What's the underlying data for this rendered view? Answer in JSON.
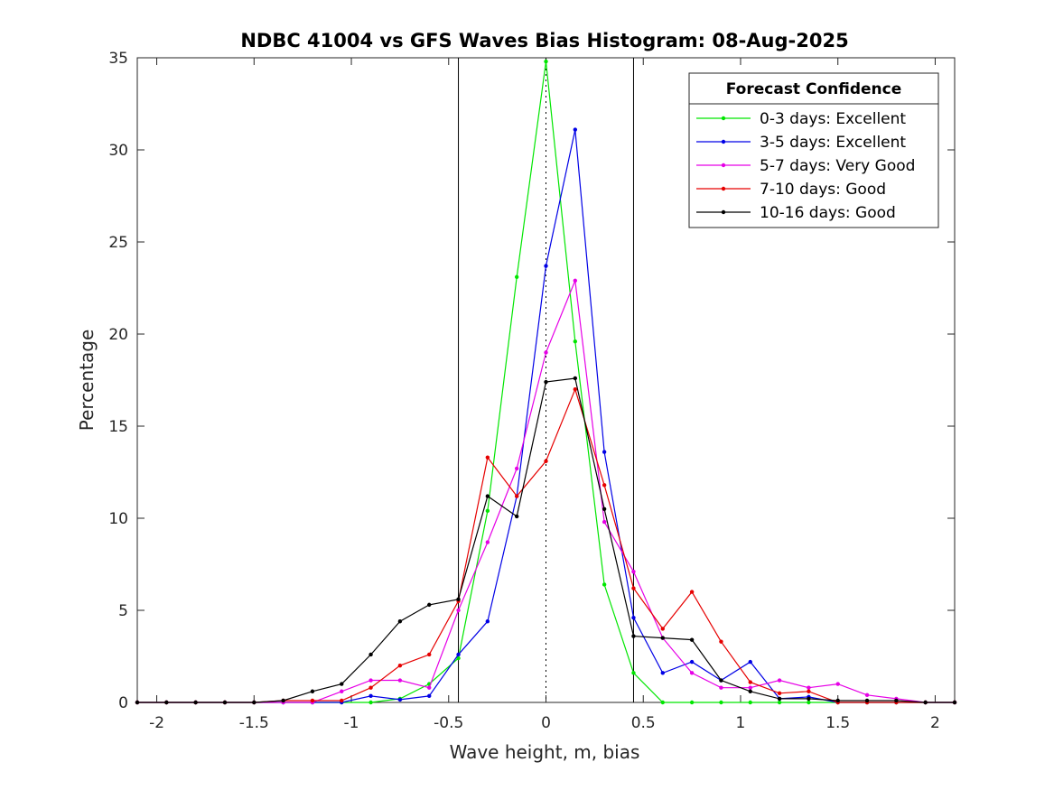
{
  "chart_data": {
    "type": "line",
    "title": "NDBC 41004 vs GFS Waves Bias Histogram: 08-Aug-2025",
    "xlabel": "Wave height, m, bias",
    "ylabel": "Percentage",
    "xlim": [
      -2.1,
      2.1
    ],
    "ylim": [
      0,
      35
    ],
    "xticks": [
      -2,
      -1.5,
      -1,
      -0.5,
      0,
      0.5,
      1,
      1.5,
      2
    ],
    "xtick_labels": [
      "-2",
      "-1.5",
      "-1",
      "-0.5",
      "0",
      "0.5",
      "1",
      "1.5",
      "2"
    ],
    "yticks": [
      0,
      5,
      10,
      15,
      20,
      25,
      30,
      35
    ],
    "ytick_labels": [
      "0",
      "5",
      "10",
      "15",
      "20",
      "25",
      "30",
      "35"
    ],
    "grid": false,
    "legend": {
      "title": "Forecast Confidence",
      "placement": "top-right"
    },
    "reference_lines": [
      {
        "x": -0.45,
        "style": "solid"
      },
      {
        "x": 0,
        "style": "dotted"
      },
      {
        "x": 0.45,
        "style": "solid"
      }
    ],
    "x": [
      -2.1,
      -1.95,
      -1.8,
      -1.65,
      -1.5,
      -1.35,
      -1.2,
      -1.05,
      -0.9,
      -0.75,
      -0.6,
      -0.45,
      -0.3,
      -0.15,
      0,
      0.15,
      0.3,
      0.45,
      0.6,
      0.75,
      0.9,
      1.05,
      1.2,
      1.35,
      1.5,
      1.65,
      1.8,
      1.95,
      2.1
    ],
    "series": [
      {
        "name": "0-3 days: Excellent",
        "color": "#00e600",
        "values": [
          0,
          0,
          0,
          0,
          0,
          0,
          0,
          0,
          0,
          0.2,
          1.0,
          2.4,
          10.4,
          23.1,
          34.8,
          19.6,
          6.4,
          1.6,
          0,
          0,
          0,
          0,
          0,
          0,
          0,
          0,
          0,
          0,
          0
        ]
      },
      {
        "name": "3-5 days: Excellent",
        "color": "#0000e6",
        "values": [
          0,
          0,
          0,
          0,
          0,
          0,
          0,
          0,
          0.35,
          0.15,
          0.35,
          2.6,
          4.4,
          11.2,
          23.7,
          31.1,
          13.6,
          4.6,
          1.6,
          2.2,
          1.2,
          2.2,
          0.2,
          0.3,
          0,
          0,
          0,
          0,
          0
        ]
      },
      {
        "name": "5-7 days: Very Good",
        "color": "#e600e6",
        "values": [
          0,
          0,
          0,
          0,
          0,
          0,
          0,
          0.6,
          1.2,
          1.2,
          0.8,
          5.0,
          8.7,
          12.7,
          19.0,
          22.9,
          9.8,
          7.1,
          3.5,
          1.6,
          0.8,
          0.8,
          1.2,
          0.8,
          1.0,
          0.4,
          0.2,
          0,
          0
        ]
      },
      {
        "name": "7-10 days: Good",
        "color": "#e60000",
        "values": [
          0,
          0,
          0,
          0,
          0,
          0.1,
          0.1,
          0.1,
          0.8,
          2.0,
          2.6,
          5.5,
          13.3,
          11.2,
          13.1,
          17.0,
          11.8,
          6.2,
          4.0,
          6.0,
          3.3,
          1.1,
          0.5,
          0.6,
          0,
          0,
          0,
          0,
          0
        ]
      },
      {
        "name": "10-16 days: Good",
        "color": "#000000",
        "values": [
          0,
          0,
          0,
          0,
          0,
          0.1,
          0.6,
          1.0,
          2.6,
          4.4,
          5.3,
          5.6,
          11.2,
          10.1,
          17.4,
          17.6,
          10.5,
          3.6,
          3.5,
          3.4,
          1.2,
          0.6,
          0.2,
          0.2,
          0.1,
          0.1,
          0.1,
          0,
          0
        ]
      }
    ]
  }
}
